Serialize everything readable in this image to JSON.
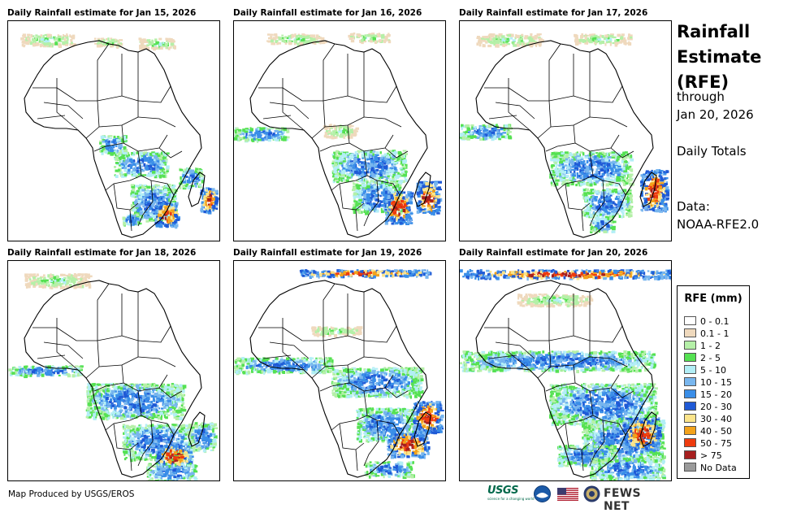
{
  "panels": [
    {
      "title": "Daily Rainfall estimate for Jan 15, 2026"
    },
    {
      "title": "Daily Rainfall estimate for Jan 16, 2026"
    },
    {
      "title": "Daily Rainfall estimate for Jan 17, 2026"
    },
    {
      "title": "Daily Rainfall estimate for Jan 18, 2026"
    },
    {
      "title": "Daily Rainfall estimate for Jan 19, 2026"
    },
    {
      "title": "Daily Rainfall estimate for Jan 20, 2026"
    }
  ],
  "side": {
    "title_line1": "Rainfall",
    "title_line2": "Estimate",
    "title_line3": "(RFE)",
    "through": "through",
    "end_date": "Jan 20, 2026",
    "totals": "Daily Totals",
    "data_label": "Data:",
    "data_source": "NOAA-RFE2.0"
  },
  "legend": {
    "title": "RFE (mm)",
    "items": [
      {
        "label": "0 - 0.1",
        "color": "#ffffff"
      },
      {
        "label": "0.1 - 1",
        "color": "#efd9bd"
      },
      {
        "label": "1 - 2",
        "color": "#b5f0a8"
      },
      {
        "label": "2 - 5",
        "color": "#55e152"
      },
      {
        "label": "5 - 10",
        "color": "#b2eef6"
      },
      {
        "label": "10 - 15",
        "color": "#78b6ee"
      },
      {
        "label": "15 - 20",
        "color": "#3a8ee8"
      },
      {
        "label": "20 - 30",
        "color": "#1f5ad6"
      },
      {
        "label": "30 - 40",
        "color": "#fbe48a"
      },
      {
        "label": "40 - 50",
        "color": "#f3a21b"
      },
      {
        "label": "50 - 75",
        "color": "#ee3b0e"
      },
      {
        "label": "> 75",
        "color": "#a61f1f"
      },
      {
        "label": "No Data",
        "color": "#9a9a9a"
      }
    ]
  },
  "footer": {
    "credit": "Map Produced by USGS/EROS"
  },
  "logos": {
    "usgs": "USGS",
    "usgs_tagline": "science for a changing world",
    "fews": "FEWS NET"
  }
}
